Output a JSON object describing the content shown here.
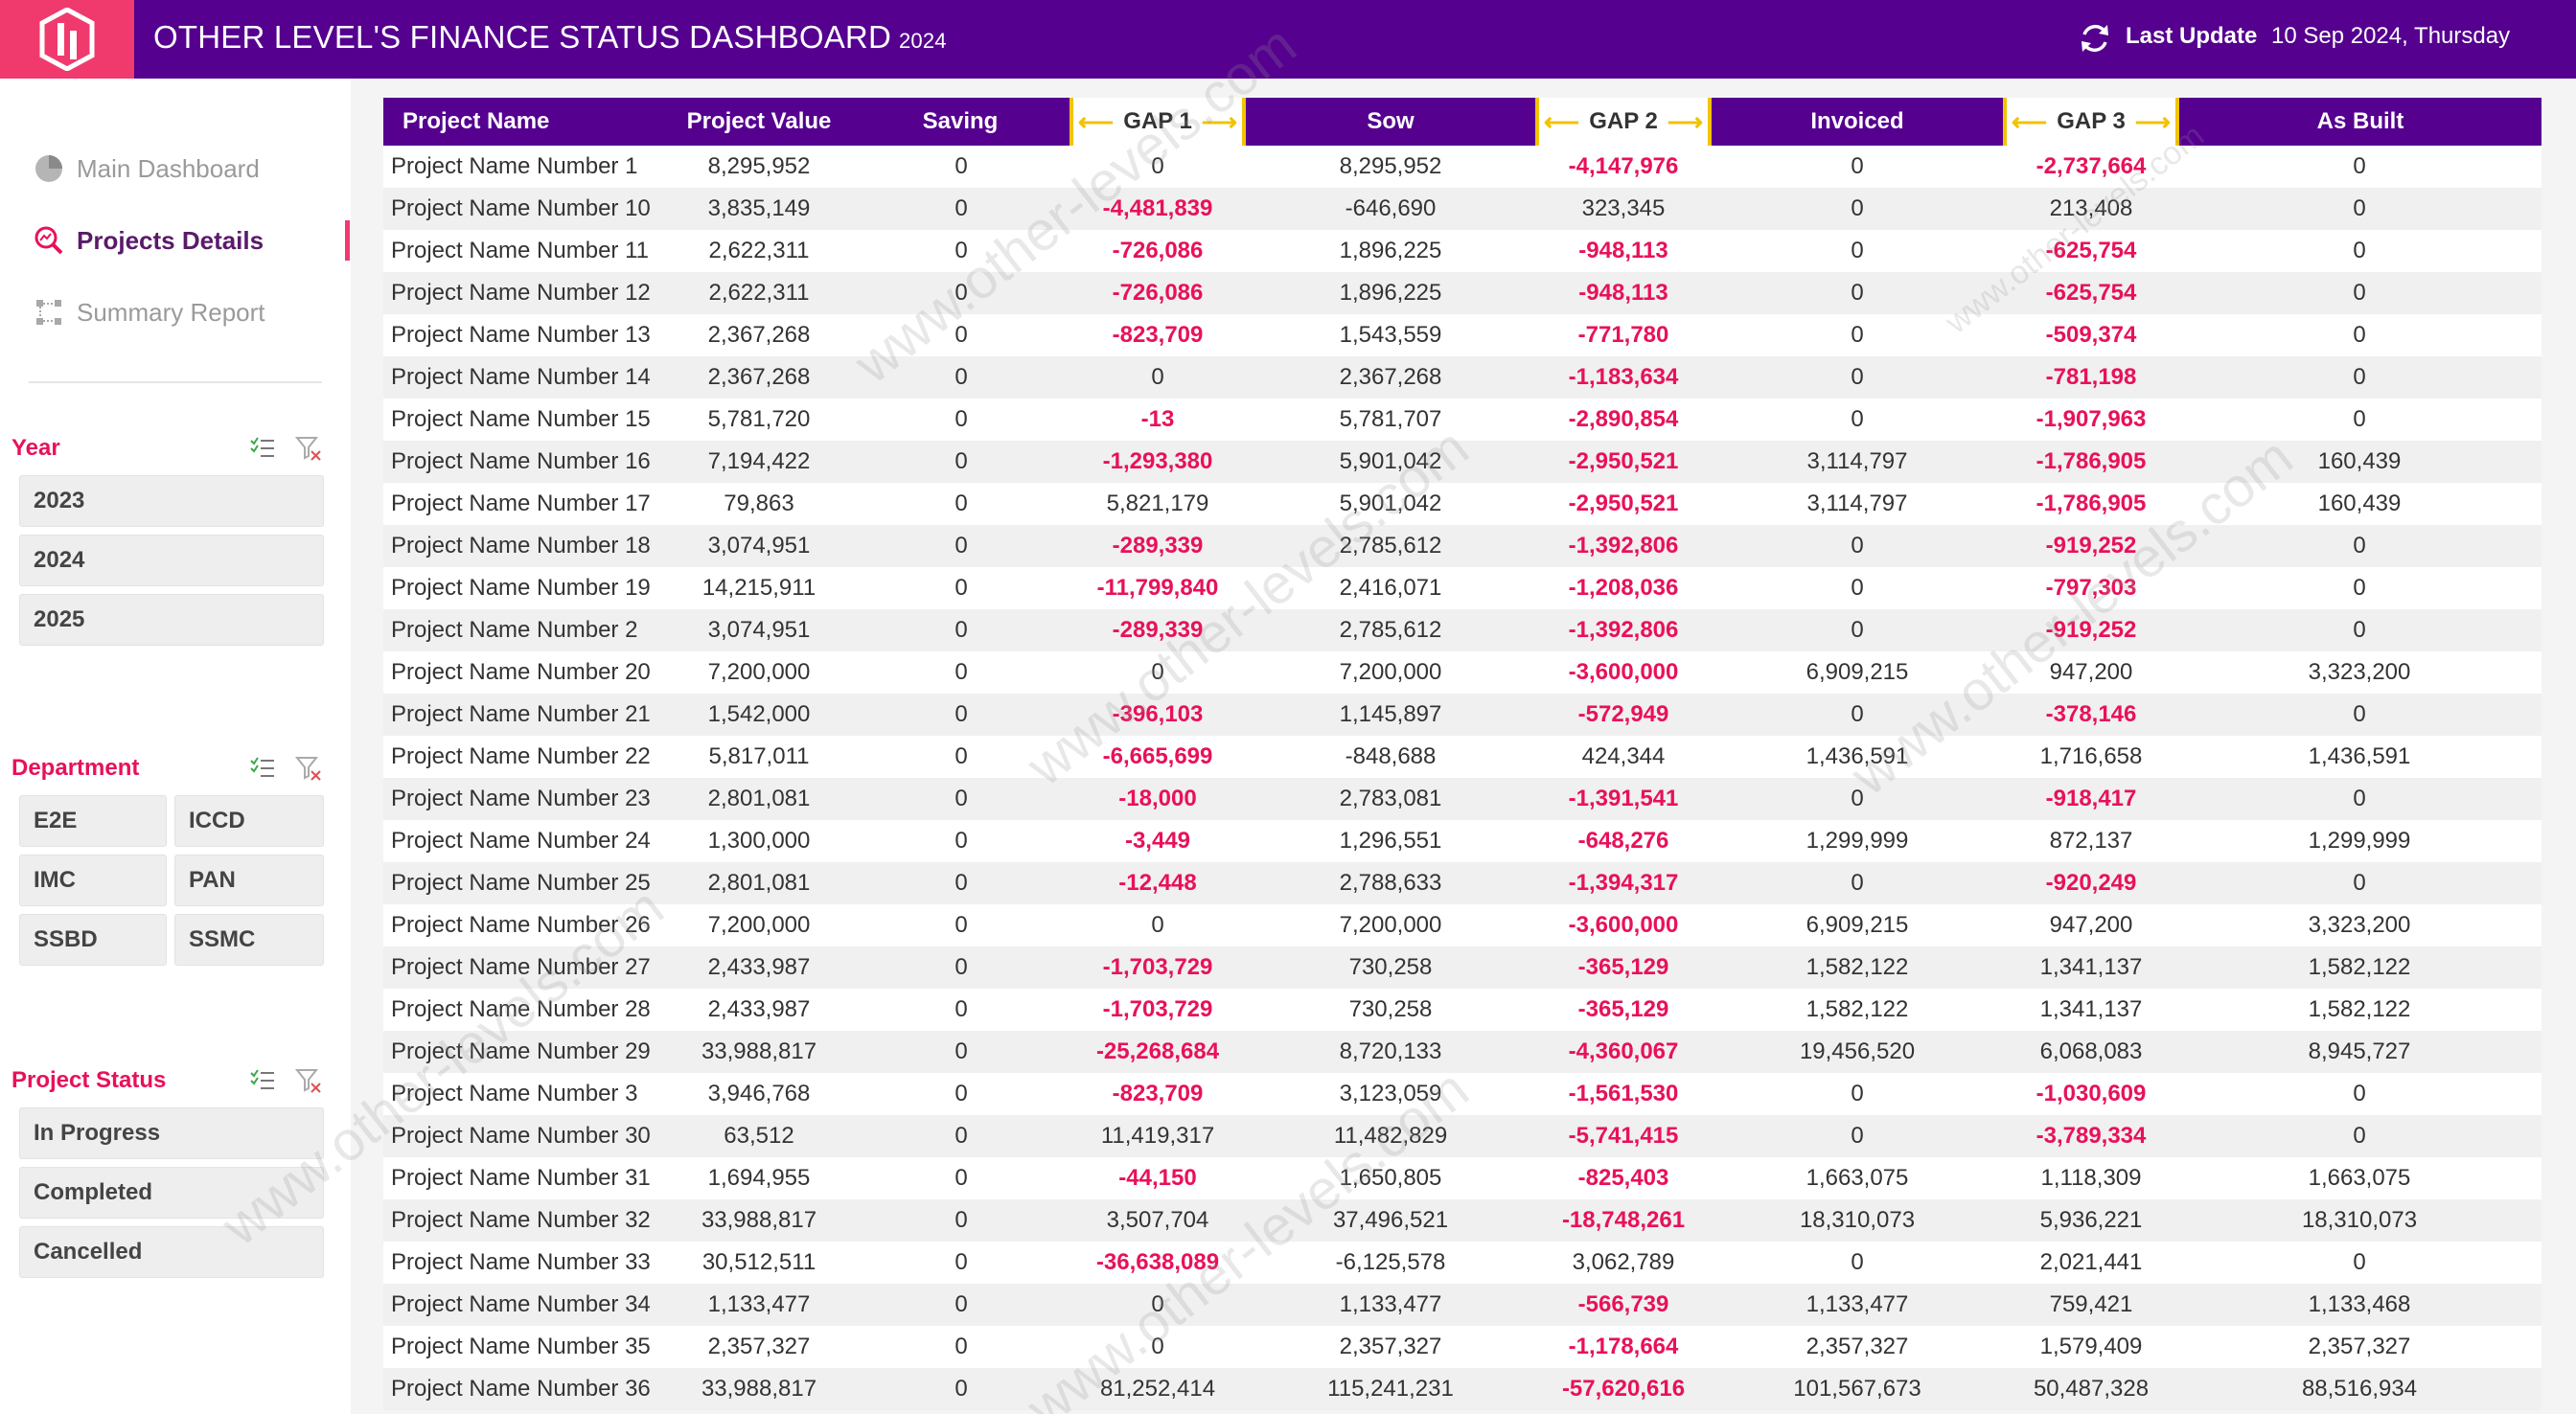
{
  "header": {
    "title": "OTHER LEVEL'S FINANCE STATUS DASHBOARD",
    "year": "2024",
    "last_update_label": "Last Update",
    "last_update_value": "10 Sep 2024, Thursday"
  },
  "nav": {
    "items": [
      {
        "label": "Main Dashboard",
        "icon": "pie-chart-icon",
        "active": false
      },
      {
        "label": "Projects Details",
        "icon": "search-chart-icon",
        "active": true
      },
      {
        "label": "Summary Report",
        "icon": "nodes-icon",
        "active": false
      }
    ]
  },
  "filters": {
    "year": {
      "title": "Year",
      "options": [
        "2023",
        "2024",
        "2025"
      ]
    },
    "department": {
      "title": "Department",
      "options": [
        "E2E",
        "ICCD",
        "IMC",
        "PAN",
        "SSBD",
        "SSMC"
      ]
    },
    "status": {
      "title": "Project Status",
      "options": [
        "In Progress",
        "Completed",
        "Cancelled"
      ]
    }
  },
  "table": {
    "columns": [
      "Project Name",
      "Project Value",
      "Saving",
      "GAP 1",
      "Sow",
      "GAP 2",
      "Invoiced",
      "GAP 3",
      "As Built"
    ],
    "rows": [
      [
        "Project Name Number 1",
        "8,295,952",
        "0",
        "0",
        "8,295,952",
        "-4,147,976",
        "0",
        "-2,737,664",
        "0"
      ],
      [
        "Project Name Number 10",
        "3,835,149",
        "0",
        "-4,481,839",
        "-646,690",
        "323,345",
        "0",
        "213,408",
        "0"
      ],
      [
        "Project Name Number 11",
        "2,622,311",
        "0",
        "-726,086",
        "1,896,225",
        "-948,113",
        "0",
        "-625,754",
        "0"
      ],
      [
        "Project Name Number 12",
        "2,622,311",
        "0",
        "-726,086",
        "1,896,225",
        "-948,113",
        "0",
        "-625,754",
        "0"
      ],
      [
        "Project Name Number 13",
        "2,367,268",
        "0",
        "-823,709",
        "1,543,559",
        "-771,780",
        "0",
        "-509,374",
        "0"
      ],
      [
        "Project Name Number 14",
        "2,367,268",
        "0",
        "0",
        "2,367,268",
        "-1,183,634",
        "0",
        "-781,198",
        "0"
      ],
      [
        "Project Name Number 15",
        "5,781,720",
        "0",
        "-13",
        "5,781,707",
        "-2,890,854",
        "0",
        "-1,907,963",
        "0"
      ],
      [
        "Project Name Number 16",
        "7,194,422",
        "0",
        "-1,293,380",
        "5,901,042",
        "-2,950,521",
        "3,114,797",
        "-1,786,905",
        "160,439"
      ],
      [
        "Project Name Number 17",
        "79,863",
        "0",
        "5,821,179",
        "5,901,042",
        "-2,950,521",
        "3,114,797",
        "-1,786,905",
        "160,439"
      ],
      [
        "Project Name Number 18",
        "3,074,951",
        "0",
        "-289,339",
        "2,785,612",
        "-1,392,806",
        "0",
        "-919,252",
        "0"
      ],
      [
        "Project Name Number 19",
        "14,215,911",
        "0",
        "-11,799,840",
        "2,416,071",
        "-1,208,036",
        "0",
        "-797,303",
        "0"
      ],
      [
        "Project Name Number 2",
        "3,074,951",
        "0",
        "-289,339",
        "2,785,612",
        "-1,392,806",
        "0",
        "-919,252",
        "0"
      ],
      [
        "Project Name Number 20",
        "7,200,000",
        "0",
        "0",
        "7,200,000",
        "-3,600,000",
        "6,909,215",
        "947,200",
        "3,323,200"
      ],
      [
        "Project Name Number 21",
        "1,542,000",
        "0",
        "-396,103",
        "1,145,897",
        "-572,949",
        "0",
        "-378,146",
        "0"
      ],
      [
        "Project Name Number 22",
        "5,817,011",
        "0",
        "-6,665,699",
        "-848,688",
        "424,344",
        "1,436,591",
        "1,716,658",
        "1,436,591"
      ],
      [
        "Project Name Number 23",
        "2,801,081",
        "0",
        "-18,000",
        "2,783,081",
        "-1,391,541",
        "0",
        "-918,417",
        "0"
      ],
      [
        "Project Name Number 24",
        "1,300,000",
        "0",
        "-3,449",
        "1,296,551",
        "-648,276",
        "1,299,999",
        "872,137",
        "1,299,999"
      ],
      [
        "Project Name Number 25",
        "2,801,081",
        "0",
        "-12,448",
        "2,788,633",
        "-1,394,317",
        "0",
        "-920,249",
        "0"
      ],
      [
        "Project Name Number 26",
        "7,200,000",
        "0",
        "0",
        "7,200,000",
        "-3,600,000",
        "6,909,215",
        "947,200",
        "3,323,200"
      ],
      [
        "Project Name Number 27",
        "2,433,987",
        "0",
        "-1,703,729",
        "730,258",
        "-365,129",
        "1,582,122",
        "1,341,137",
        "1,582,122"
      ],
      [
        "Project Name Number 28",
        "2,433,987",
        "0",
        "-1,703,729",
        "730,258",
        "-365,129",
        "1,582,122",
        "1,341,137",
        "1,582,122"
      ],
      [
        "Project Name Number 29",
        "33,988,817",
        "0",
        "-25,268,684",
        "8,720,133",
        "-4,360,067",
        "19,456,520",
        "6,068,083",
        "8,945,727"
      ],
      [
        "Project Name Number 3",
        "3,946,768",
        "0",
        "-823,709",
        "3,123,059",
        "-1,561,530",
        "0",
        "-1,030,609",
        "0"
      ],
      [
        "Project Name Number 30",
        "63,512",
        "0",
        "11,419,317",
        "11,482,829",
        "-5,741,415",
        "0",
        "-3,789,334",
        "0"
      ],
      [
        "Project Name Number 31",
        "1,694,955",
        "0",
        "-44,150",
        "1,650,805",
        "-825,403",
        "1,663,075",
        "1,118,309",
        "1,663,075"
      ],
      [
        "Project Name Number 32",
        "33,988,817",
        "0",
        "3,507,704",
        "37,496,521",
        "-18,748,261",
        "18,310,073",
        "5,936,221",
        "18,310,073"
      ],
      [
        "Project Name Number 33",
        "30,512,511",
        "0",
        "-36,638,089",
        "-6,125,578",
        "3,062,789",
        "0",
        "2,021,441",
        "0"
      ],
      [
        "Project Name Number 34",
        "1,133,477",
        "0",
        "0",
        "1,133,477",
        "-566,739",
        "1,133,477",
        "759,421",
        "1,133,468"
      ],
      [
        "Project Name Number 35",
        "2,357,327",
        "0",
        "0",
        "2,357,327",
        "-1,178,664",
        "2,357,327",
        "1,579,409",
        "2,357,327"
      ],
      [
        "Project Name Number 36",
        "33,988,817",
        "0",
        "81,252,414",
        "115,241,231",
        "-57,620,616",
        "101,567,673",
        "50,487,328",
        "88,516,934"
      ]
    ]
  },
  "watermark": "www.other-levels.com"
}
